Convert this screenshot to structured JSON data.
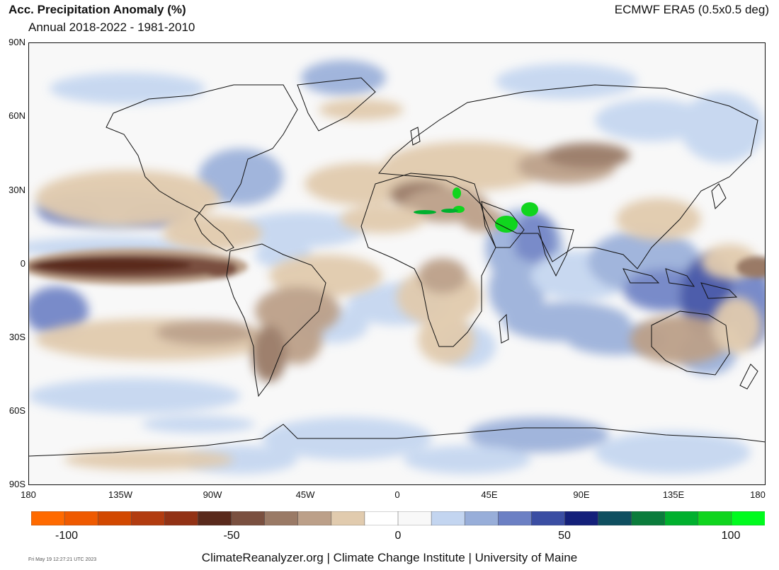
{
  "header": {
    "title": "Acc. Precipitation Anomaly (%)",
    "subtitle": "Annual 2018-2022 - 1981-2010",
    "source": "ECMWF ERA5 (0.5x0.5 deg)"
  },
  "map": {
    "lat_labels": [
      "90N",
      "60N",
      "30N",
      "0",
      "30S",
      "60S",
      "90S"
    ],
    "lon_labels": [
      "180",
      "135W",
      "90W",
      "45W",
      "0",
      "45E",
      "90E",
      "135E",
      "180"
    ]
  },
  "legend": {
    "colors": [
      "#ff6a00",
      "#ef5a00",
      "#d24800",
      "#b23c10",
      "#923215",
      "#5a2a1c",
      "#7a5040",
      "#9a7a66",
      "#bca089",
      "#e1cbae",
      "#ffffff",
      "#f8f8f8",
      "#c3d5f0",
      "#98aed9",
      "#6c80c4",
      "#3b4ea3",
      "#14207a",
      "#0f4f60",
      "#0b7c3c",
      "#00b02e",
      "#10d51e",
      "#00fb1e"
    ],
    "labels": [
      "-100",
      "-50",
      "0",
      "50",
      "100"
    ]
  },
  "footer": {
    "credit": "ClimateReanalyzer.org | Climate Change Institute | University of Maine",
    "timestamp": "Fri May 19 12:27:21 UTC 2023"
  }
}
